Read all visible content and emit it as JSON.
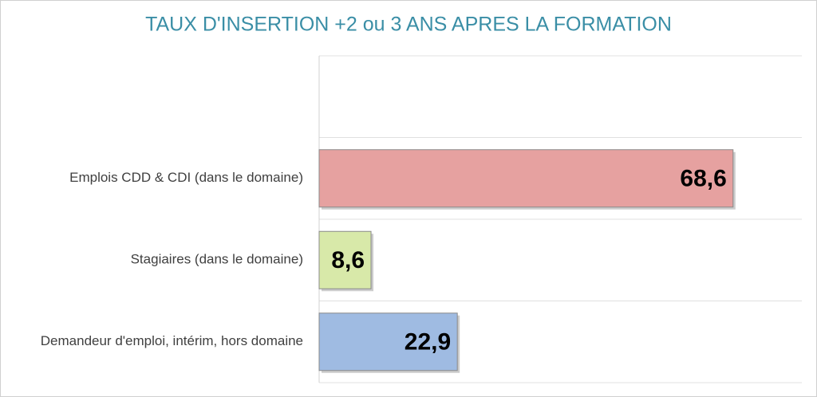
{
  "chart_data": {
    "type": "barh",
    "title": "TAUX D'INSERTION +2 ou 3 ANS APRES LA FORMATION",
    "categories": [
      null,
      "Emplois CDD & CDI (dans le domaine)",
      "Stagiaires (dans le domaine)",
      "Demandeur d'emploi, intérim, hors domaine"
    ],
    "values": [
      null,
      68.6,
      8.6,
      22.9
    ],
    "value_labels": [
      null,
      "68,6",
      "8,6",
      "22,9"
    ],
    "colors": [
      null,
      "#e6a1a0",
      "#d8e9a9",
      "#9fbbe2"
    ],
    "xlim": [
      0,
      80
    ]
  }
}
